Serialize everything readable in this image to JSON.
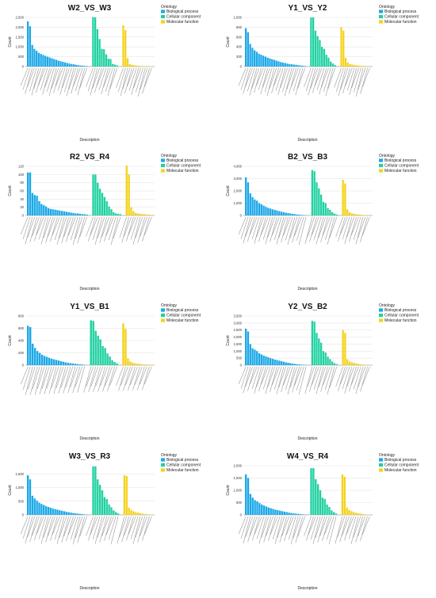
{
  "legend": {
    "title": "Ontology",
    "entries": [
      {
        "label": "Biological process",
        "color": "#1ba8e8"
      },
      {
        "label": "Cellular component",
        "color": "#1fd1a0"
      },
      {
        "label": "Molecular function",
        "color": "#f5d21b"
      }
    ]
  },
  "xlabel": "Description",
  "ylabel": "Count",
  "chart_data": [
    {
      "type": "bar",
      "title": "W2_VS_W3",
      "ylim": [
        0,
        2500
      ],
      "yticks": [
        "0",
        "500",
        "1,000",
        "1,500",
        "2,000",
        "2,500"
      ],
      "series": [
        {
          "name": "Biological process",
          "values": [
            2300,
            2050,
            1100,
            900,
            800,
            700,
            640,
            590,
            540,
            500,
            460,
            420,
            380,
            340,
            300,
            270,
            240,
            210,
            180,
            150,
            130,
            110,
            90,
            70,
            55,
            45,
            35,
            25
          ]
        },
        {
          "name": "Cellular component",
          "values": [
            2520,
            2500,
            1900,
            1400,
            900,
            880,
            620,
            400,
            380,
            130,
            100,
            60
          ]
        },
        {
          "name": "Molecular function",
          "values": [
            2100,
            1850,
            420,
            120,
            90,
            70,
            50,
            40,
            30,
            25,
            20,
            15,
            10,
            8
          ]
        }
      ]
    },
    {
      "type": "bar",
      "title": "Y1_VS_Y2",
      "ylim": [
        0,
        1000
      ],
      "yticks": [
        "0",
        "200",
        "400",
        "600",
        "800",
        "1,000"
      ],
      "series": [
        {
          "name": "Biological process",
          "values": [
            780,
            700,
            460,
            380,
            330,
            300,
            260,
            240,
            220,
            200,
            180,
            165,
            150,
            135,
            120,
            105,
            90,
            80,
            70,
            60,
            50,
            45,
            40,
            35,
            28,
            22,
            16,
            12
          ]
        },
        {
          "name": "Cellular component",
          "values": [
            1000,
            1000,
            730,
            620,
            540,
            400,
            360,
            240,
            180,
            100,
            60,
            30
          ]
        },
        {
          "name": "Molecular function",
          "values": [
            800,
            730,
            180,
            80,
            50,
            40,
            30,
            25,
            20,
            15,
            12,
            10,
            8,
            5
          ]
        }
      ]
    },
    {
      "type": "bar",
      "title": "R2_VS_R4",
      "ylim": [
        0,
        120
      ],
      "yticks": [
        "0",
        "20",
        "40",
        "60",
        "80",
        "100",
        "120"
      ],
      "series": [
        {
          "name": "Biological process",
          "values": [
            105,
            105,
            55,
            50,
            48,
            35,
            28,
            25,
            22,
            18,
            16,
            15,
            14,
            13,
            12,
            11,
            10,
            9,
            8,
            7,
            6,
            5,
            5,
            4,
            3,
            3,
            2
          ]
        },
        {
          "name": "Cellular component",
          "values": [
            100,
            100,
            80,
            65,
            55,
            45,
            35,
            22,
            15,
            8,
            5,
            4,
            3
          ]
        },
        {
          "name": "Molecular function",
          "values": [
            122,
            100,
            20,
            10,
            6,
            5,
            4,
            3,
            3,
            2,
            2,
            1
          ]
        }
      ]
    },
    {
      "type": "bar",
      "title": "B2_VS_B3",
      "ylim": [
        0,
        4000
      ],
      "yticks": [
        "0",
        "1,000",
        "2,000",
        "3,000",
        "4,000"
      ],
      "series": [
        {
          "name": "Biological process",
          "values": [
            3100,
            2700,
            1800,
            1500,
            1300,
            1200,
            1000,
            900,
            800,
            700,
            620,
            560,
            500,
            450,
            400,
            350,
            300,
            260,
            220,
            190,
            160,
            130,
            100,
            80,
            60,
            45,
            30,
            20
          ]
        },
        {
          "name": "Cellular component",
          "values": [
            3700,
            3600,
            2700,
            2200,
            1700,
            1100,
            1000,
            600,
            450,
            260,
            150,
            80
          ]
        },
        {
          "name": "Molecular function",
          "values": [
            2900,
            2600,
            500,
            250,
            180,
            130,
            100,
            80,
            60,
            40,
            30,
            20,
            10
          ]
        }
      ]
    },
    {
      "type": "bar",
      "title": "Y1_VS_B1",
      "ylim": [
        0,
        800
      ],
      "yticks": [
        "0",
        "200",
        "400",
        "600",
        "800"
      ],
      "series": [
        {
          "name": "Biological process",
          "values": [
            640,
            620,
            350,
            280,
            230,
            200,
            170,
            150,
            135,
            120,
            105,
            95,
            85,
            75,
            65,
            55,
            45,
            38,
            32,
            27,
            22,
            18,
            14,
            10,
            7
          ]
        },
        {
          "name": "Cellular component",
          "values": [
            730,
            720,
            560,
            480,
            420,
            310,
            280,
            190,
            140,
            80,
            50,
            30
          ]
        },
        {
          "name": "Molecular function",
          "values": [
            680,
            590,
            110,
            60,
            40,
            30,
            25,
            20,
            15,
            12,
            10,
            8,
            5
          ]
        }
      ]
    },
    {
      "type": "bar",
      "title": "Y2_VS_B2",
      "ylim": [
        0,
        3500
      ],
      "yticks": [
        "0",
        "500",
        "1,000",
        "1,500",
        "2,000",
        "2,500",
        "3,000",
        "3,500"
      ],
      "series": [
        {
          "name": "Biological process",
          "values": [
            2600,
            2400,
            1500,
            1200,
            1100,
            1000,
            850,
            760,
            680,
            620,
            560,
            500,
            450,
            400,
            360,
            320,
            280,
            240,
            200,
            170,
            140,
            110,
            85,
            65,
            50,
            35,
            25,
            15
          ]
        },
        {
          "name": "Cellular component",
          "values": [
            3150,
            3100,
            2300,
            1900,
            1600,
            1000,
            900,
            600,
            430,
            250,
            140,
            70
          ]
        },
        {
          "name": "Molecular function",
          "values": [
            2500,
            2300,
            420,
            260,
            200,
            160,
            120,
            90,
            60,
            45,
            30,
            20,
            12
          ]
        }
      ]
    },
    {
      "type": "bar",
      "title": "W3_VS_R3",
      "ylim": [
        0,
        1800
      ],
      "yticks": [
        "0",
        "500",
        "1,000",
        "1,500"
      ],
      "series": [
        {
          "name": "Biological process",
          "values": [
            1450,
            1300,
            700,
            600,
            520,
            450,
            400,
            360,
            320,
            290,
            260,
            230,
            210,
            190,
            170,
            150,
            130,
            110,
            95,
            80,
            65,
            55,
            45,
            35,
            25,
            18,
            12
          ]
        },
        {
          "name": "Cellular component",
          "values": [
            1780,
            1780,
            1300,
            1100,
            900,
            650,
            580,
            380,
            280,
            160,
            100,
            50
          ]
        },
        {
          "name": "Molecular function",
          "values": [
            1450,
            1420,
            260,
            180,
            130,
            100,
            80,
            60,
            45,
            30,
            22,
            15,
            10
          ]
        }
      ]
    },
    {
      "type": "bar",
      "title": "W4_VS_R4",
      "ylim": [
        0,
        2000
      ],
      "yticks": [
        "0",
        "500",
        "1,000",
        "1,500",
        "2,000"
      ],
      "series": [
        {
          "name": "Biological process",
          "values": [
            1650,
            1500,
            850,
            700,
            600,
            550,
            480,
            420,
            380,
            340,
            300,
            270,
            240,
            210,
            190,
            170,
            150,
            130,
            110,
            90,
            75,
            60,
            50,
            40,
            30,
            20,
            12
          ]
        },
        {
          "name": "Cellular component",
          "values": [
            1900,
            1900,
            1450,
            1250,
            1000,
            700,
            650,
            420,
            320,
            180,
            110,
            55
          ]
        },
        {
          "name": "Molecular function",
          "values": [
            1650,
            1550,
            300,
            200,
            150,
            110,
            85,
            65,
            50,
            35,
            25,
            15,
            10
          ]
        }
      ]
    }
  ]
}
